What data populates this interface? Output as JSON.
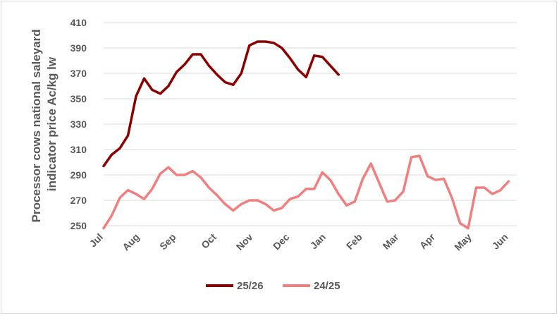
{
  "chart_data": {
    "type": "line",
    "title": "",
    "ylabel_lines": [
      "Processor cows national saleyard",
      "indicator price Ac/kg lw"
    ],
    "xlabel": "",
    "ylim": [
      250,
      410
    ],
    "yticks": [
      250,
      270,
      290,
      310,
      330,
      350,
      370,
      390,
      410
    ],
    "xtick_labels": [
      "Jul",
      "Aug",
      "Sep",
      "Oct",
      "Nov",
      "Dec",
      "Jan",
      "Feb",
      "Mar",
      "Apr",
      "May",
      "Jun"
    ],
    "xtick_weeks": [
      0,
      4.5,
      9,
      14,
      18.5,
      23,
      27.5,
      32,
      36.5,
      41,
      45.5,
      50
    ],
    "grid": "horizontal",
    "legend_position": "bottom",
    "series": [
      {
        "name": "25/26",
        "color": "#8b0000",
        "values": [
          297,
          306,
          311,
          321,
          352,
          366,
          357,
          354,
          360,
          371,
          377,
          385,
          385,
          376,
          369,
          363,
          361,
          370,
          392,
          395,
          395,
          394,
          390,
          382,
          373,
          367,
          384,
          383,
          376,
          369
        ]
      },
      {
        "name": "24/25",
        "color": "#f08080",
        "values": [
          248,
          258,
          272,
          278,
          275,
          271,
          279,
          291,
          296,
          290,
          290,
          293,
          288,
          280,
          274,
          267,
          262,
          267,
          270,
          270,
          267,
          262,
          264,
          271,
          273,
          279,
          279,
          292,
          286,
          275,
          266,
          269,
          287,
          299,
          284,
          269,
          270,
          277,
          304,
          305,
          289,
          286,
          287,
          272,
          252,
          248,
          280,
          280,
          275,
          278,
          285
        ]
      }
    ]
  }
}
